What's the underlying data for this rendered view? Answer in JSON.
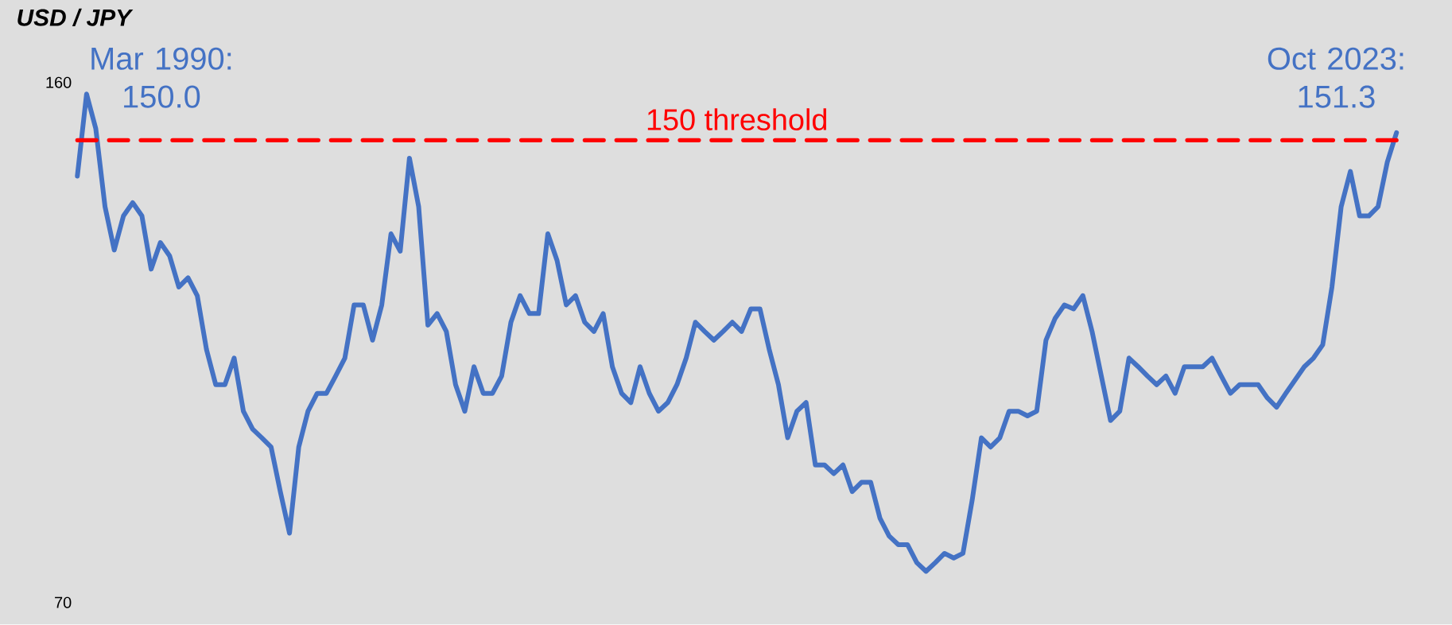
{
  "chart_data": {
    "type": "line",
    "title": "USD / JPY",
    "categories": [
      null,
      null,
      null,
      null,
      null,
      null,
      null,
      null,
      null,
      null,
      null,
      null,
      null,
      null,
      null,
      null,
      null,
      null,
      null,
      null,
      null,
      null,
      null,
      null,
      null,
      null,
      null,
      null,
      null,
      null,
      null,
      null,
      null,
      null,
      null,
      null,
      null,
      null,
      null,
      null,
      null,
      null,
      null,
      null,
      null,
      null,
      null,
      null,
      null,
      null,
      null,
      null,
      null,
      null,
      null,
      null,
      null,
      null,
      null,
      null,
      null,
      null,
      null,
      null,
      null,
      null,
      null,
      null,
      null,
      null,
      null,
      null,
      null,
      null,
      null,
      null,
      null,
      null,
      null,
      null,
      null,
      null,
      null,
      null,
      null,
      null,
      null,
      null,
      null,
      null,
      null,
      null,
      null,
      null,
      null,
      null,
      null,
      null,
      null,
      null,
      null,
      null,
      null,
      null,
      null,
      null,
      null,
      null,
      null,
      null,
      null,
      null,
      null,
      null,
      null,
      null,
      null,
      null,
      null,
      null,
      null,
      null,
      null,
      null,
      null,
      null,
      null,
      null,
      null,
      null,
      null,
      null,
      null,
      null,
      null,
      null,
      null,
      null,
      null,
      null,
      null,
      null,
      null,
      null
    ],
    "series": [
      {
        "color": "#4472c4",
        "values": [
          143.8,
          158,
          152,
          138.5,
          131,
          136.9,
          139.2,
          136.9,
          127.7,
          132.3,
          130,
          124.6,
          126.2,
          123.1,
          113.8,
          107.7,
          107.7,
          112.3,
          103.1,
          100,
          98.5,
          96.9,
          89.2,
          82,
          96.9,
          103.1,
          106.2,
          106.2,
          109.2,
          112.3,
          121.5,
          121.5,
          115.4,
          121.5,
          133.8,
          130.8,
          146.9,
          138.5,
          118,
          120,
          116.9,
          107.7,
          103.1,
          110.8,
          106.2,
          106.2,
          109.2,
          118.5,
          123.1,
          120,
          120,
          133.8,
          129.2,
          121.5,
          123.1,
          118.5,
          116.9,
          120,
          110.8,
          106.2,
          104.6,
          110.8,
          106.2,
          103.1,
          104.6,
          107.7,
          112.3,
          118.5,
          116.9,
          115.4,
          116.9,
          118.5,
          116.9,
          120.8,
          120.8,
          113.8,
          107.7,
          98.5,
          103.1,
          104.6,
          93.8,
          93.8,
          92.3,
          93.8,
          89.2,
          90.8,
          90.8,
          84.6,
          81.5,
          80,
          80,
          76.9,
          75.4,
          76.9,
          78.5,
          77.7,
          78.5,
          87.7,
          98.5,
          96.9,
          98.5,
          103.1,
          103.1,
          102.3,
          103.1,
          115.4,
          119.2,
          121.5,
          120.8,
          123.1,
          116.9,
          109.2,
          101.5,
          103.1,
          112.3,
          110.8,
          109.2,
          107.7,
          109.2,
          106.2,
          110.8,
          110.8,
          110.8,
          112.3,
          109.2,
          106.2,
          107.7,
          107.7,
          107.7,
          105.4,
          103.8,
          106.2,
          108.5,
          110.8,
          112.3,
          114.6,
          124.6,
          138.5,
          144.6,
          136.9,
          136.9,
          138.5,
          146.2,
          151.3
        ]
      }
    ],
    "ylim": [
      70,
      160
    ],
    "yticks": [
      70,
      160
    ],
    "ref_lines": [
      {
        "axis": "y",
        "value": 150,
        "label": "150 threshold",
        "color": "#ff0000",
        "line_style": "dashed"
      }
    ],
    "annotations": [
      "Mar 1990: 150.0",
      "Oct 2023: 151.3"
    ]
  }
}
